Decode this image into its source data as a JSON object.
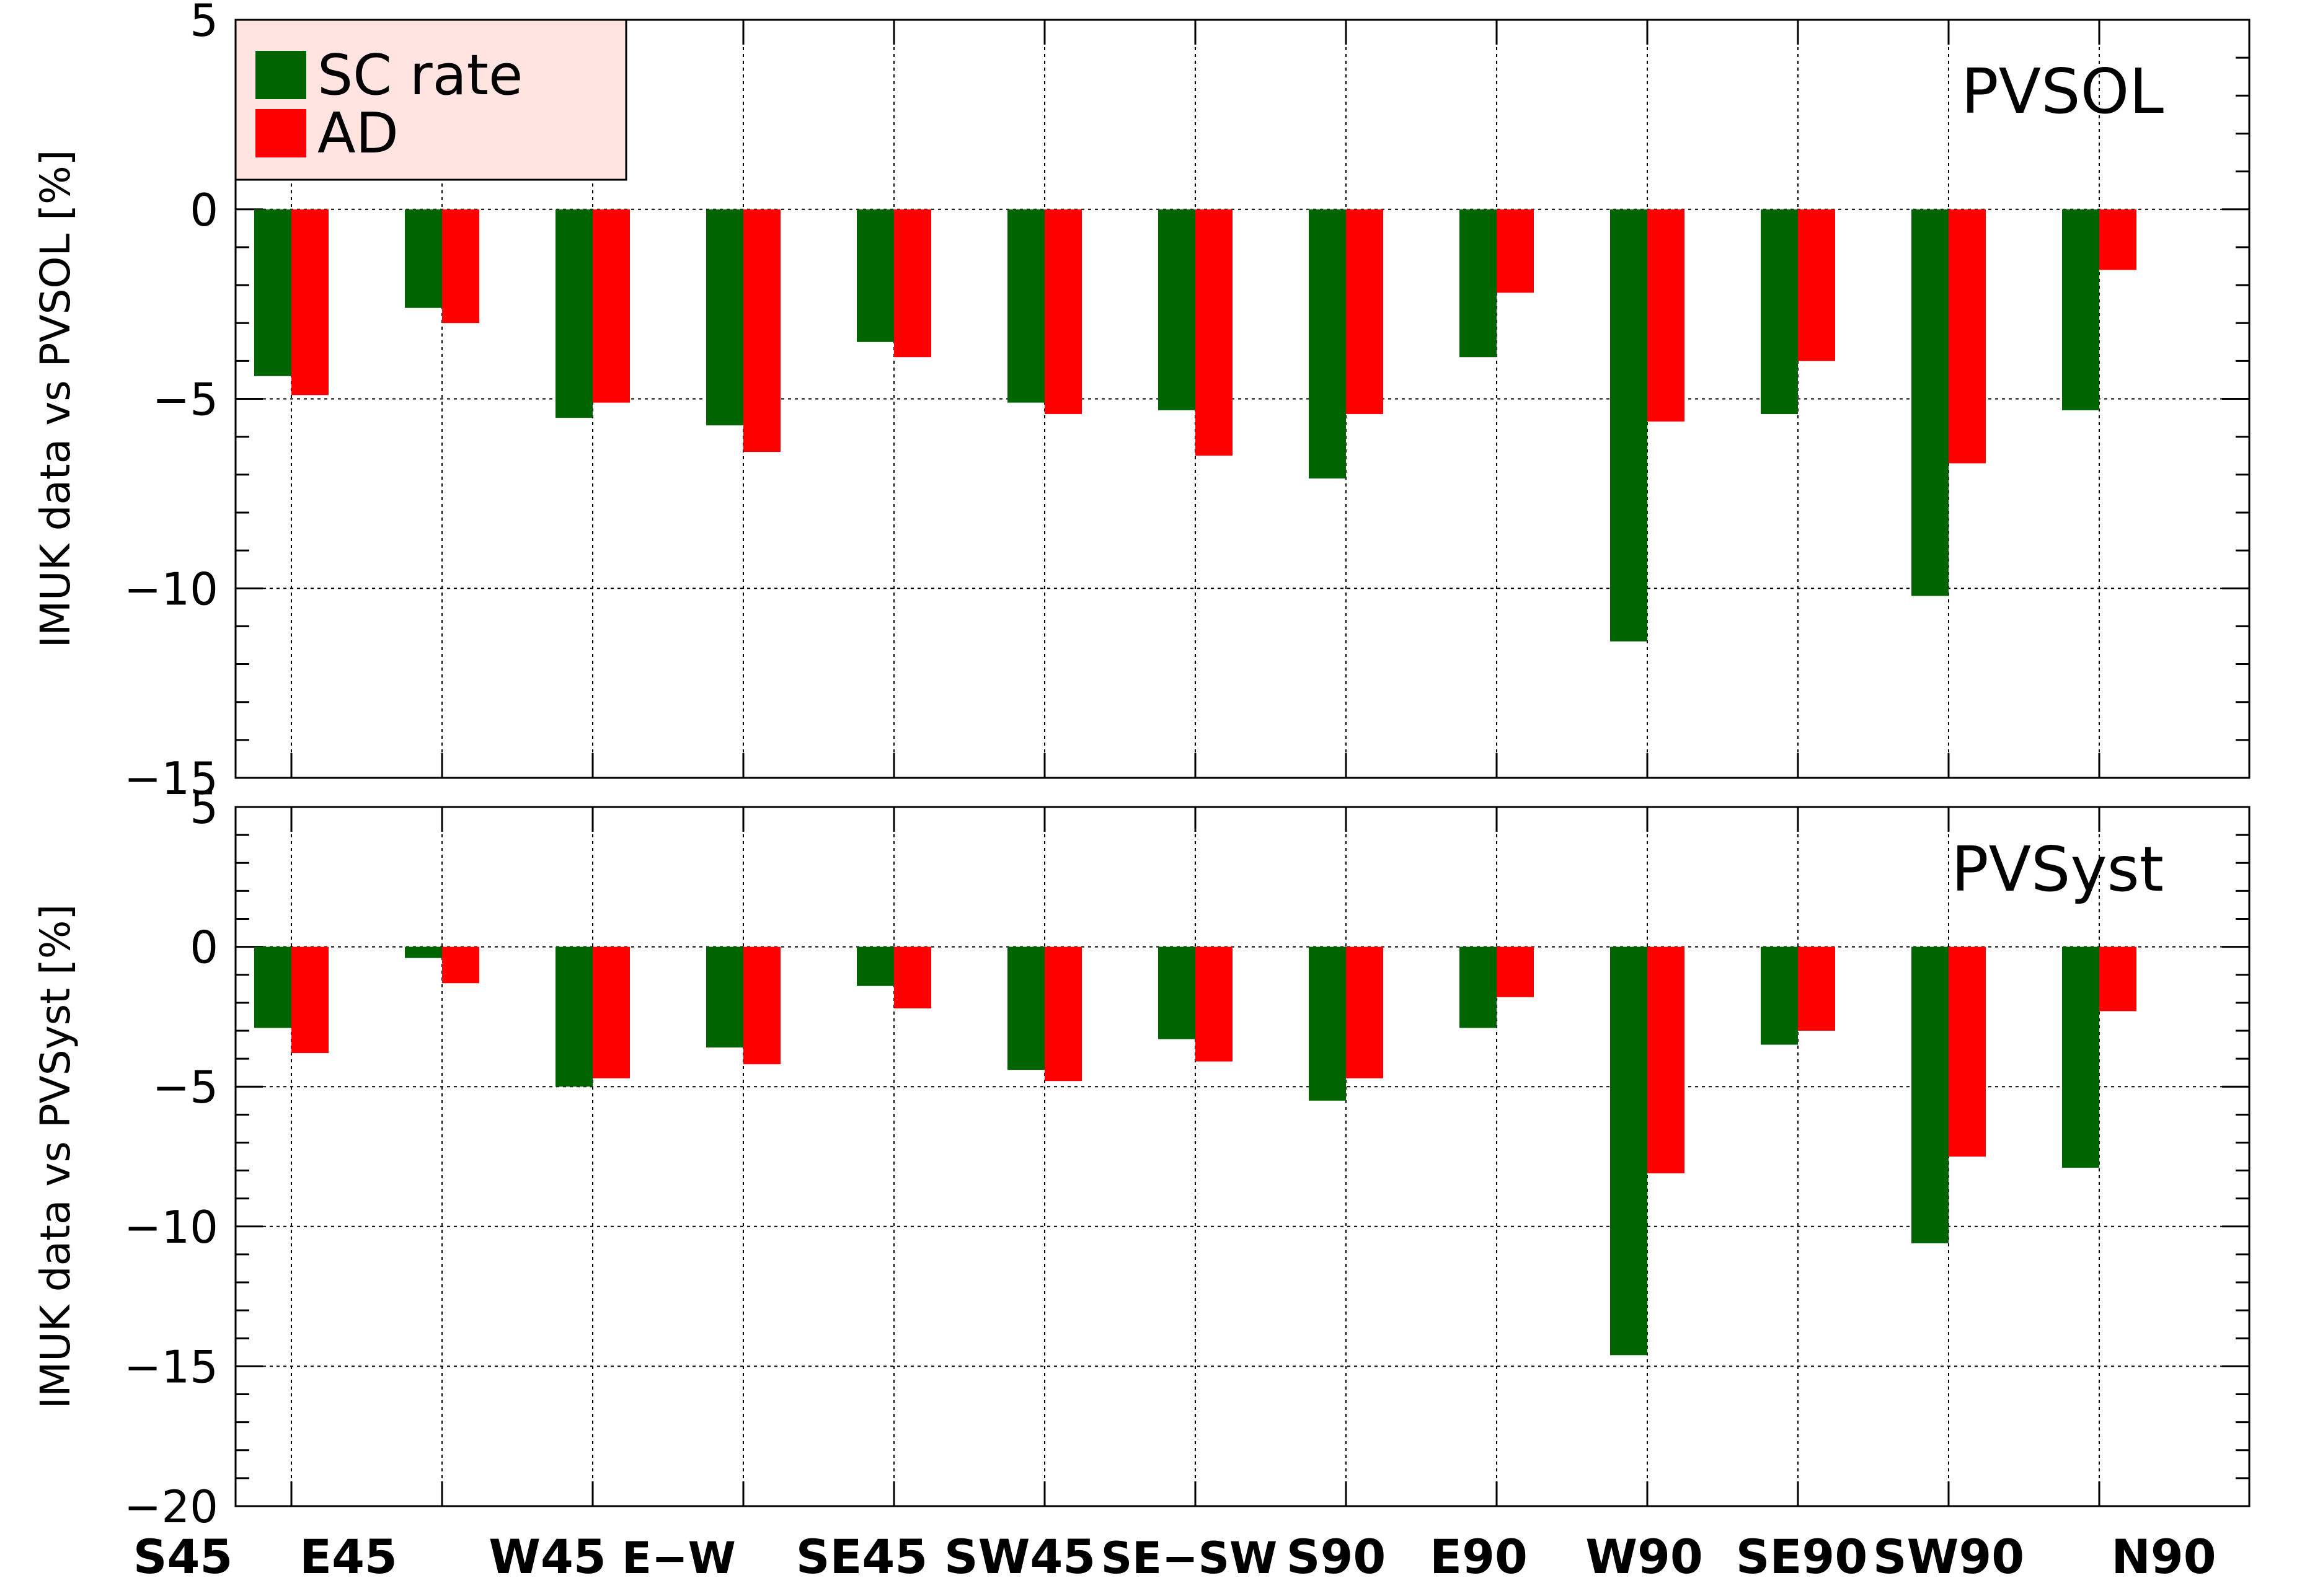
{
  "chart_data": [
    {
      "type": "bar",
      "title": "PVSOL",
      "ylabel": "IMUK data vs PVSOL [%]",
      "ylim": [
        -15,
        5
      ],
      "yticks": [
        5,
        0,
        -5,
        -10,
        -15
      ],
      "categories": [
        "S45",
        "E45",
        "W45",
        "E−W",
        "SE45",
        "SW45",
        "SE−SW",
        "S90",
        "E90",
        "W90",
        "SE90",
        "SW90",
        "N90"
      ],
      "series": [
        {
          "name": "SC rate",
          "color": "#006400",
          "values": [
            -4.4,
            -2.6,
            -5.5,
            -5.7,
            -3.5,
            -5.1,
            -5.3,
            -7.1,
            -3.9,
            -11.4,
            -5.4,
            -10.2,
            -5.3
          ]
        },
        {
          "name": "AD",
          "color": "#ff0000",
          "values": [
            -4.9,
            -3.0,
            -5.1,
            -6.4,
            -3.9,
            -5.4,
            -6.5,
            -5.4,
            -2.2,
            -5.6,
            -4.0,
            -6.7,
            -1.6
          ]
        }
      ],
      "grid": "dotted",
      "legend": "top-left"
    },
    {
      "type": "bar",
      "title": "PVSyst",
      "ylabel": "IMUK data vs PVSyst [%]",
      "ylim": [
        -20,
        5
      ],
      "yticks": [
        5,
        0,
        -5,
        -10,
        -15,
        -20
      ],
      "categories": [
        "S45",
        "E45",
        "W45",
        "E−W",
        "SE45",
        "SW45",
        "SE−SW",
        "S90",
        "E90",
        "W90",
        "SE90",
        "SW90",
        "N90"
      ],
      "series": [
        {
          "name": "SC rate",
          "color": "#006400",
          "values": [
            -2.9,
            -0.4,
            -5.0,
            -3.6,
            -1.4,
            -4.4,
            -3.3,
            -5.5,
            -2.9,
            -14.6,
            -3.5,
            -10.6,
            -7.9
          ]
        },
        {
          "name": "AD",
          "color": "#ff0000",
          "values": [
            -3.8,
            -1.3,
            -4.7,
            -4.2,
            -2.2,
            -4.8,
            -4.1,
            -4.7,
            -1.8,
            -8.1,
            -3.0,
            -7.5,
            -2.3
          ]
        }
      ],
      "grid": "dotted"
    }
  ]
}
